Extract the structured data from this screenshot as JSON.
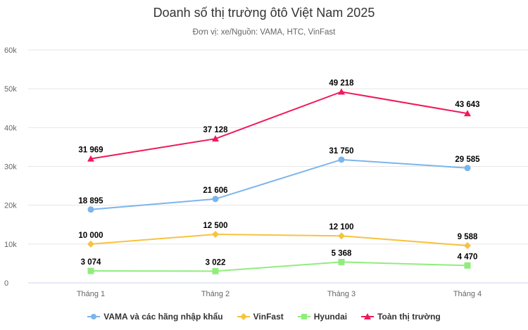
{
  "chart_data": {
    "type": "line",
    "title": "Doanh số thị trường ôtô Việt Nam 2025",
    "subtitle": "Đơn vị: xe/Nguồn: VAMA, HTC, VinFast",
    "categories": [
      "Tháng 1",
      "Tháng 2",
      "Tháng 3",
      "Tháng 4"
    ],
    "ylim": [
      0,
      60000
    ],
    "yticks": [
      0,
      10000,
      20000,
      30000,
      40000,
      50000,
      60000
    ],
    "ytick_labels": [
      "0",
      "10k",
      "20k",
      "30k",
      "40k",
      "50k",
      "60k"
    ],
    "grid": true,
    "legend": "bottom",
    "series": [
      {
        "name": "VAMA và các hãng nhập khẩu",
        "values": [
          18895,
          21606,
          31750,
          29585
        ],
        "labels": [
          "18 895",
          "21 606",
          "31 750",
          "29 585"
        ],
        "color": "#7cb5ec",
        "marker": "circle"
      },
      {
        "name": "VinFast",
        "values": [
          10000,
          12500,
          12100,
          9588
        ],
        "labels": [
          "10 000",
          "12 500",
          "12 100",
          "9 588"
        ],
        "color": "#f7c33f",
        "marker": "diamond"
      },
      {
        "name": "Hyundai",
        "values": [
          3074,
          3022,
          5368,
          4470
        ],
        "labels": [
          "3 074",
          "3 022",
          "5 368",
          "4 470"
        ],
        "color": "#90ed7d",
        "marker": "square"
      },
      {
        "name": "Toàn thị trường",
        "values": [
          31969,
          37128,
          49218,
          43643
        ],
        "labels": [
          "31 969",
          "37 128",
          "49 218",
          "43 643"
        ],
        "color": "#f0195a",
        "marker": "triangle"
      }
    ]
  }
}
